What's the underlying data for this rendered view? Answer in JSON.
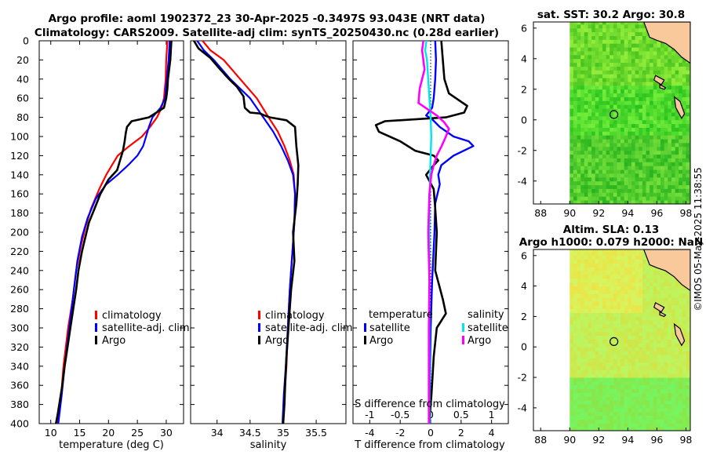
{
  "title_line1": "Argo profile: aoml 1902372_23 30-Apr-2025 -0.3497S 93.043E (NRT data)",
  "title_line2": "Climatology: CARS2009. Satellite-adj clim: synTS_20250430.nc (0.28d earlier)",
  "map1_title": "sat. SST: 30.2 Argo: 30.8",
  "map2_title_line1": "Altim. SLA: 0.13",
  "map2_title_line2": "Argo h1000: 0.079 h2000: NaN",
  "timestamp": "©IMOS 05-May-2025 11:38:55",
  "colors": {
    "climatology": "#ff0000",
    "satellite": "#0000ff",
    "argo": "#000000",
    "salinity_satellite": "#00e5ee",
    "salinity_argo": "#ff00ff",
    "land": "#f9c99c",
    "sst_green": "#3ed63e",
    "sla_yellow": "#d2ec4a"
  },
  "chart_data": [
    {
      "type": "line",
      "name": "temperature profile",
      "xlabel": "temperature (deg C)",
      "ylabel": "",
      "xlim": [
        8,
        33
      ],
      "ylim": [
        400,
        0
      ],
      "xticks": [
        10,
        15,
        20,
        25,
        30
      ],
      "yticks": [
        0,
        20,
        40,
        60,
        80,
        100,
        120,
        140,
        160,
        180,
        200,
        220,
        240,
        260,
        280,
        300,
        320,
        340,
        360,
        380,
        400
      ],
      "legend": [
        "climatology",
        "satellite-adj. clim",
        "Argo"
      ],
      "series": [
        {
          "name": "climatology",
          "color": "#ff0000",
          "x": [
            30.2,
            30.0,
            29.9,
            29.6,
            29.2,
            28.4,
            27.2,
            25.8,
            23.6,
            21.6,
            20.6,
            19.6,
            18.4,
            17.0,
            16.0,
            15.2,
            14.4,
            13.8,
            13.0,
            12.2,
            11.8,
            11.2
          ],
          "depth": [
            0,
            20,
            40,
            60,
            70,
            80,
            90,
            100,
            110,
            120,
            130,
            140,
            155,
            175,
            195,
            215,
            240,
            270,
            300,
            340,
            370,
            400
          ]
        },
        {
          "name": "satellite-adj. clim",
          "color": "#0000ff",
          "x": [
            30.6,
            30.4,
            30.1,
            29.8,
            29.0,
            27.6,
            27.0,
            26.5,
            26.0,
            25.0,
            23.4,
            21.6,
            19.6,
            17.8,
            16.4,
            15.4,
            14.6,
            14.0,
            13.2,
            12.4,
            11.9,
            11.3
          ],
          "depth": [
            0,
            20,
            40,
            60,
            70,
            80,
            90,
            100,
            110,
            120,
            130,
            140,
            150,
            165,
            185,
            205,
            230,
            260,
            300,
            340,
            370,
            400
          ]
        },
        {
          "name": "Argo",
          "color": "#000000",
          "x": [
            30.9,
            30.8,
            30.7,
            30.5,
            30.3,
            30.2,
            30.0,
            29.6,
            27.0,
            24.0,
            23.2,
            23.0,
            22.8,
            22.5,
            22.0,
            21.5,
            20.0,
            18.6,
            17.6,
            16.6,
            16.0,
            15.4,
            14.8,
            14.4,
            13.9,
            13.4,
            12.9,
            12.4,
            12.0,
            11.6,
            11.2,
            10.9
          ],
          "depth": [
            0,
            10,
            20,
            30,
            40,
            50,
            60,
            70,
            80,
            84,
            90,
            96,
            105,
            115,
            125,
            135,
            145,
            160,
            175,
            190,
            205,
            220,
            240,
            260,
            280,
            300,
            320,
            340,
            360,
            375,
            390,
            400
          ]
        }
      ]
    },
    {
      "type": "line",
      "name": "salinity profile",
      "xlabel": "salinity",
      "xlim": [
        33.6,
        35.95
      ],
      "ylim": [
        400,
        0
      ],
      "xticks": [
        34,
        34.5,
        35,
        35.5
      ],
      "legend": [
        "climatology",
        "satellite-adj. clim",
        "Argo"
      ],
      "series": [
        {
          "name": "climatology",
          "color": "#ff0000",
          "x": [
            33.78,
            33.9,
            34.1,
            34.35,
            34.6,
            34.78,
            34.92,
            35.02,
            35.1,
            35.16,
            35.18,
            35.17,
            35.14,
            35.1,
            35.07,
            35.05,
            35.02,
            35.0
          ],
          "depth": [
            0,
            10,
            20,
            40,
            60,
            80,
            95,
            110,
            125,
            140,
            160,
            190,
            220,
            260,
            300,
            340,
            370,
            400
          ]
        },
        {
          "name": "satellite-adj. clim",
          "color": "#0000ff",
          "x": [
            33.7,
            33.8,
            33.95,
            34.2,
            34.5,
            34.7,
            34.85,
            34.97,
            35.07,
            35.15,
            35.18,
            35.17,
            35.14,
            35.1,
            35.07,
            35.04,
            35.01,
            34.99
          ],
          "depth": [
            0,
            10,
            20,
            40,
            60,
            80,
            95,
            110,
            125,
            140,
            160,
            190,
            220,
            260,
            300,
            340,
            370,
            400
          ]
        },
        {
          "name": "Argo",
          "color": "#000000",
          "x": [
            33.65,
            33.72,
            33.9,
            34.05,
            34.18,
            34.3,
            34.4,
            34.42,
            34.5,
            34.65,
            34.72,
            34.8,
            35.05,
            35.18,
            35.2,
            35.23,
            35.22,
            35.2,
            35.15,
            35.17,
            35.12,
            35.1,
            35.08,
            35.05,
            35.03,
            35.02,
            35.0
          ],
          "depth": [
            0,
            8,
            18,
            30,
            40,
            48,
            58,
            70,
            75,
            76,
            78,
            80,
            83,
            90,
            110,
            130,
            150,
            170,
            200,
            230,
            260,
            280,
            300,
            330,
            360,
            380,
            400
          ]
        }
      ]
    },
    {
      "type": "line",
      "name": "difference from climatology",
      "xlabel": "T difference from climatology",
      "x2label": "S difference from climatology",
      "xlim": [
        -5.1,
        5.1
      ],
      "x2lim": [
        -1.275,
        1.275
      ],
      "ylim": [
        400,
        0
      ],
      "xticks": [
        -4,
        -2,
        0,
        2,
        4
      ],
      "x2ticks": [
        -1,
        -0.5,
        0,
        0.5,
        1
      ],
      "x2ticklabels": [
        "-1",
        "-0.5",
        "0",
        "0.5",
        "1"
      ],
      "legend_temperature_title": "temperature",
      "legend_salinity_title": "salinity",
      "legend_temperature": [
        "satellite",
        "Argo"
      ],
      "legend_salinity": [
        "satellite",
        "Argo"
      ],
      "series": [
        {
          "name": "T satellite",
          "axis": "T",
          "color": "#0000ff",
          "x": [
            0.3,
            0.35,
            0.3,
            0.2,
            0.1,
            -0.3,
            0.1,
            0.6,
            1.5,
            2.5,
            2.8,
            1.5,
            0.7,
            0.5,
            0.6,
            0.3,
            0.25,
            0.1,
            0.0,
            -0.05,
            -0.05
          ],
          "depth": [
            0,
            20,
            40,
            60,
            70,
            78,
            82,
            90,
            100,
            105,
            110,
            120,
            130,
            140,
            150,
            170,
            200,
            250,
            300,
            350,
            400
          ]
        },
        {
          "name": "T Argo",
          "axis": "T",
          "color": "#000000",
          "x": [
            0.7,
            0.8,
            0.9,
            1.2,
            2.4,
            2.2,
            1.0,
            -3.0,
            -3.6,
            -3.4,
            -2.0,
            -1.0,
            0.2,
            0.5,
            0.2,
            -0.3,
            0.2,
            0.3,
            0.4,
            0.3,
            0.8,
            1.0,
            0.4,
            0.2,
            0.05,
            -0.1
          ],
          "depth": [
            0,
            20,
            40,
            55,
            68,
            75,
            80,
            84,
            88,
            95,
            105,
            115,
            120,
            125,
            130,
            140,
            155,
            175,
            200,
            240,
            270,
            285,
            300,
            330,
            370,
            400
          ]
        },
        {
          "name": "S satellite",
          "axis": "S",
          "color": "#00e5ee",
          "x": [
            -0.07,
            -0.09,
            -0.06,
            -0.04,
            -0.02,
            0.0,
            0.01,
            0.0,
            -0.01,
            -0.02,
            -0.02,
            -0.02,
            -0.02,
            -0.02,
            -0.02
          ],
          "depth": [
            0,
            10,
            20,
            40,
            60,
            80,
            100,
            120,
            140,
            170,
            200,
            250,
            300,
            350,
            400
          ]
        },
        {
          "name": "S Argo",
          "axis": "S",
          "color": "#ff00ff",
          "x": [
            -0.12,
            -0.14,
            -0.1,
            -0.18,
            -0.2,
            0.1,
            0.22,
            0.3,
            0.25,
            0.18,
            0.1,
            0.05,
            0.01,
            -0.02,
            -0.04,
            -0.02,
            -0.03,
            -0.03,
            -0.03
          ],
          "depth": [
            0,
            10,
            30,
            50,
            65,
            78,
            85,
            92,
            100,
            110,
            120,
            130,
            140,
            160,
            200,
            250,
            300,
            350,
            400
          ]
        }
      ]
    },
    {
      "type": "heatmap",
      "name": "satellite SST map",
      "title": "sat. SST: 30.2 Argo: 30.8",
      "xlim": [
        87.5,
        98.3
      ],
      "ylim": [
        -5.5,
        6.4
      ],
      "xticks": [
        88,
        90,
        92,
        94,
        96,
        98
      ],
      "yticks": [
        -4,
        -2,
        0,
        2,
        4,
        6
      ],
      "data_lon_start": 90,
      "argo_position": {
        "lon": 93.043,
        "lat": 0.35
      }
    },
    {
      "type": "heatmap",
      "name": "altimetry SLA map",
      "title": "Altim. SLA: 0.13 / Argo h1000: 0.079 h2000: NaN",
      "xlim": [
        87.5,
        98.3
      ],
      "ylim": [
        -5.5,
        6.4
      ],
      "xticks": [
        88,
        90,
        92,
        94,
        96,
        98
      ],
      "yticks": [
        -4,
        -2,
        0,
        2,
        4,
        6
      ],
      "data_lon_start": 90,
      "argo_position": {
        "lon": 93.043,
        "lat": 0.35
      }
    }
  ]
}
